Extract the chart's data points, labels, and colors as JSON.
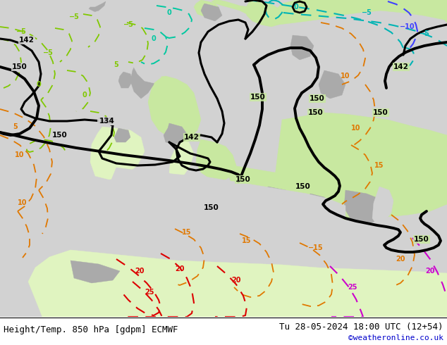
{
  "title_left": "Height/Temp. 850 hPa [gdpm] ECMWF",
  "title_right": "Tu 28-05-2024 18:00 UTC (12+54)",
  "watermark": "©weatheronline.co.uk",
  "sea_color": "#d2d2d2",
  "land_green_color": "#c8e8a0",
  "land_green2_color": "#e0f4c0",
  "land_gray_color": "#aaaaaa",
  "contour_black_color": "#000000",
  "contour_cyan_color": "#00b4b4",
  "contour_blue_color": "#4040ff",
  "contour_lgreen_color": "#80c800",
  "contour_teal_color": "#00c8a0",
  "contour_orange_color": "#e07800",
  "contour_red_color": "#dc0000",
  "contour_magenta_color": "#cc00cc",
  "font_size_title": 9,
  "fig_width": 6.34,
  "fig_height": 4.9,
  "dpi": 100
}
